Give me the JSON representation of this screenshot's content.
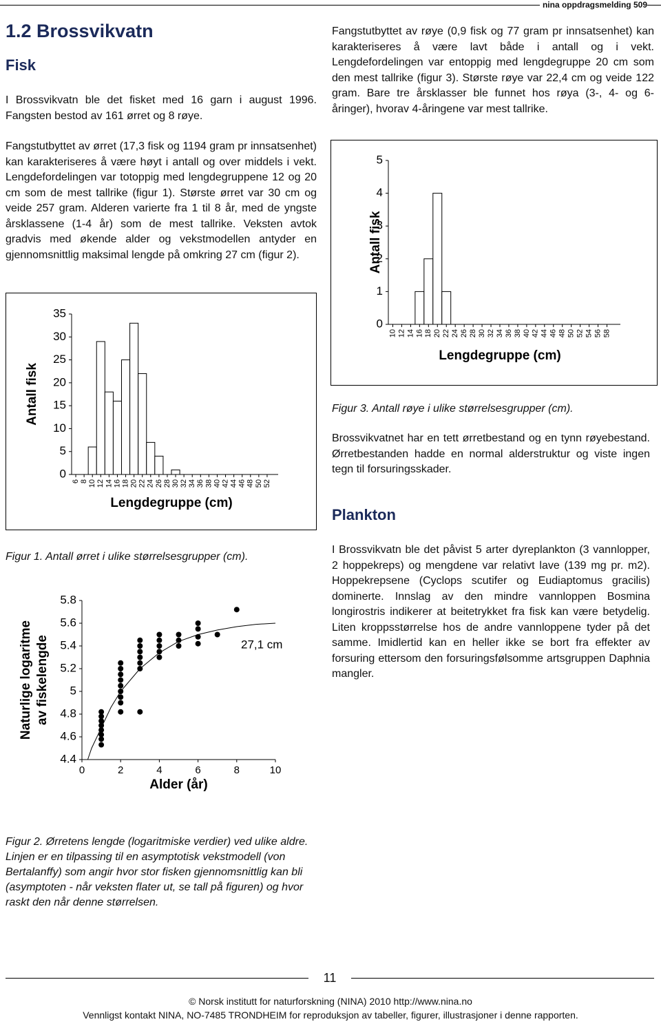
{
  "header": {
    "title": "nina oppdragsmelding 509"
  },
  "left": {
    "section_title": "1.2 Brossvikvatn",
    "heading": "Fisk",
    "paragraphs": [
      "I Brossvikvatn ble det fisket med 16 garn i august 1996. Fangsten bestod av 161 ørret og 8 røye.",
      "Fangstutbyttet av ørret (17,3 fisk og 1194 gram pr innsatsenhet) kan karakteriseres å være høyt i antall og over middels i vekt. Lengdefordelingen var totoppig med lengdegruppene 12 og 20 cm som de mest tallrike (figur 1). Største ørret var 30 cm og veide 257 gram. Alderen varierte fra 1 til 8 år, med de yngste årsklassene (1-4 år) som de mest tallrike. Veksten avtok gradvis med økende alder og vekstmodellen antyder en gjennomsnittlig maksimal lengde på omkring 27 cm (figur 2)."
    ],
    "figure_1_caption": "Figur 1. Antall ørret i ulike størrelsesgrupper (cm).",
    "figure_2_caption": "Figur 2. Ørretens lengde (logaritmiske verdier) ved ulike aldre. Linjen er en tilpassing til en asymptotisk vekstmodell (von Bertalanffy) som angir hvor stor fisken gjennomsnittlig kan bli (asymptoten - når veksten flater ut, se tall på figuren) og hvor raskt den når denne størrelsen."
  },
  "right": {
    "paragraph_1": "Fangstutbyttet av røye (0,9 fisk og 77 gram pr innsatsenhet) kan karakteriseres å være lavt både i antall og i vekt. Lengdefordelingen var entoppig med lengdegruppe 20 cm som den mest tallrike (figur 3). Største røye var 22,4 cm og veide 122 gram. Bare tre årsklasser ble funnet hos røya (3-, 4- og 6-åringer), hvorav 4-åringene var mest tallrike.",
    "figure_3_caption": "Figur 3. Antall røye i ulike størrelsesgrupper (cm).",
    "paragraph_2": "Brossvikvatnet har en tett ørretbestand og en tynn røyebestand. Ørretbestanden hadde en normal alderstruktur og viste ingen tegn til forsuringsskader.",
    "heading": "Plankton",
    "paragraph_3": "I Brossvikvatn ble det påvist 5 arter dyreplankton (3 vannlopper, 2 hoppekreps) og mengdene var relativt lave (139 mg pr. m2). Hoppekrepsene (Cyclops scutifer og Eudiaptomus gracilis) dominerte. Innslag av den mindre vannloppen Bosmina longirostris indikerer at beitetrykket fra fisk kan være betydelig. Liten kroppsstørrelse hos de andre vannloppene tyder på det samme. Imidlertid kan en heller ikke se bort fra effekter av forsuring ettersom den forsuringsfølsomme artsgruppen Daphnia mangler."
  },
  "footer": {
    "page_number": "11",
    "copyright": "© Norsk institutt for naturforskning (NINA) 2010 http://www.nina.no",
    "contact": "Vennligst kontakt NINA, NO-7485 TRONDHEIM for reproduksjon av tabeller, figurer, illustrasjoner i denne rapporten."
  },
  "chart_data": [
    {
      "type": "bar",
      "xlabel": "Lengdegruppe (cm)",
      "ylabel": "Antall fisk",
      "color": "#ffffff",
      "categories": [
        "6",
        "8",
        "10",
        "12",
        "14",
        "16",
        "18",
        "20",
        "22",
        "24",
        "26",
        "28",
        "30",
        "32",
        "34",
        "36",
        "38",
        "40",
        "42",
        "44",
        "46",
        "48",
        "50",
        "52"
      ],
      "values": [
        0,
        0,
        6,
        29,
        18,
        16,
        25,
        33,
        22,
        7,
        4,
        0,
        1,
        0,
        0,
        0,
        0,
        0,
        0,
        0,
        0,
        0,
        0,
        0
      ],
      "ylim": [
        0,
        35
      ],
      "yticks": [
        0,
        5,
        10,
        15,
        20,
        25,
        30,
        35
      ]
    },
    {
      "type": "scatter",
      "xlabel": "Alder (år)",
      "ylabel": [
        "Naturlige logaritme",
        "av fiskelengde"
      ],
      "annotation": "27,1 cm",
      "color": "#000000",
      "x": [
        1,
        1,
        1,
        1,
        1,
        1,
        1,
        1,
        2,
        2,
        2,
        2,
        2,
        2,
        2,
        2,
        2,
        3,
        3,
        3,
        3,
        3,
        3,
        3,
        4,
        4,
        4,
        4,
        4,
        5,
        5,
        5,
        6,
        6,
        6,
        6,
        7,
        8
      ],
      "y": [
        4.53,
        4.58,
        4.62,
        4.66,
        4.7,
        4.74,
        4.78,
        4.82,
        4.82,
        4.9,
        4.95,
        5.0,
        5.05,
        5.1,
        5.15,
        5.2,
        5.25,
        4.82,
        5.2,
        5.25,
        5.3,
        5.35,
        5.4,
        5.45,
        5.3,
        5.35,
        5.4,
        5.45,
        5.5,
        5.4,
        5.45,
        5.5,
        5.42,
        5.48,
        5.55,
        5.6,
        5.5,
        5.72
      ],
      "curve": {
        "x": [
          0.3,
          0.5,
          1,
          1.5,
          2,
          3,
          4,
          5,
          6,
          7,
          8,
          9,
          10
        ],
        "y": [
          4.4,
          4.5,
          4.68,
          4.86,
          5.0,
          5.2,
          5.34,
          5.44,
          5.5,
          5.54,
          5.57,
          5.59,
          5.6
        ]
      },
      "xlim": [
        0,
        10
      ],
      "xticks": [
        0,
        2,
        4,
        6,
        8,
        10
      ],
      "ylim": [
        4.4,
        5.8
      ],
      "yticks": [
        4.4,
        4.6,
        4.8,
        5,
        5.2,
        5.4,
        5.6,
        5.8
      ]
    },
    {
      "type": "bar",
      "xlabel": "Lengdegruppe (cm)",
      "ylabel": "Antall fisk",
      "color": "#ffffff",
      "categories": [
        "10",
        "12",
        "14",
        "16",
        "18",
        "20",
        "22",
        "24",
        "26",
        "28",
        "30",
        "32",
        "34",
        "36",
        "38",
        "40",
        "42",
        "44",
        "46",
        "48",
        "50",
        "52",
        "54",
        "56",
        "58"
      ],
      "values": [
        0,
        0,
        0,
        1,
        2,
        4,
        1,
        0,
        0,
        0,
        0,
        0,
        0,
        0,
        0,
        0,
        0,
        0,
        0,
        0,
        0,
        0,
        0,
        0,
        0
      ],
      "ylim": [
        0,
        5
      ],
      "yticks": [
        0,
        1,
        2,
        3,
        4,
        5
      ]
    }
  ]
}
